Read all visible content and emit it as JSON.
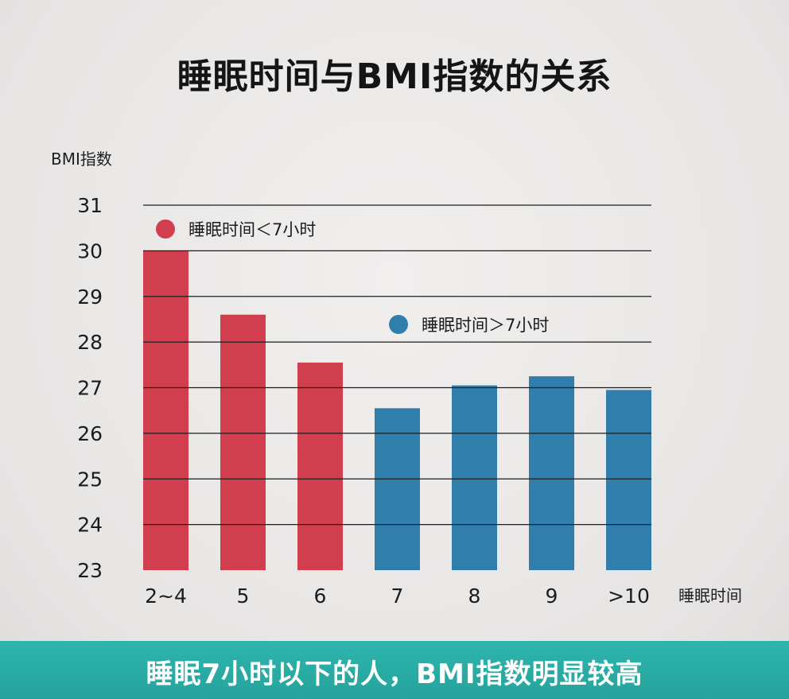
{
  "title": "睡眠时间与BMI指数的关系",
  "footer": {
    "text": "睡眠7小时以下的人，BMI指数明显较高"
  },
  "colors": {
    "short_sleep": "#d13f4e",
    "long_sleep": "#2f7eab",
    "footer_bg": "#2aaea6"
  },
  "chart_data": {
    "type": "bar",
    "title": "睡眠时间与BMI指数的关系",
    "xlabel": "睡眠时间",
    "ylabel": "BMI指数",
    "ylim": [
      23,
      31
    ],
    "yticks": [
      "23",
      "24",
      "25",
      "26",
      "27",
      "28",
      "29",
      "30",
      "31"
    ],
    "grid": true,
    "categories": [
      "2~4",
      "5",
      "6",
      "7",
      "8",
      "9",
      ">10"
    ],
    "values": [
      30.0,
      28.6,
      27.55,
      26.55,
      27.05,
      27.25,
      26.95
    ],
    "groups": [
      "short",
      "short",
      "short",
      "long",
      "long",
      "long",
      "long"
    ],
    "legend": [
      {
        "name": "睡眠时间＜7小时",
        "group": "short",
        "color": "#d13f4e"
      },
      {
        "name": "睡眠时间＞7小时",
        "group": "long",
        "color": "#2f7eab"
      }
    ]
  }
}
